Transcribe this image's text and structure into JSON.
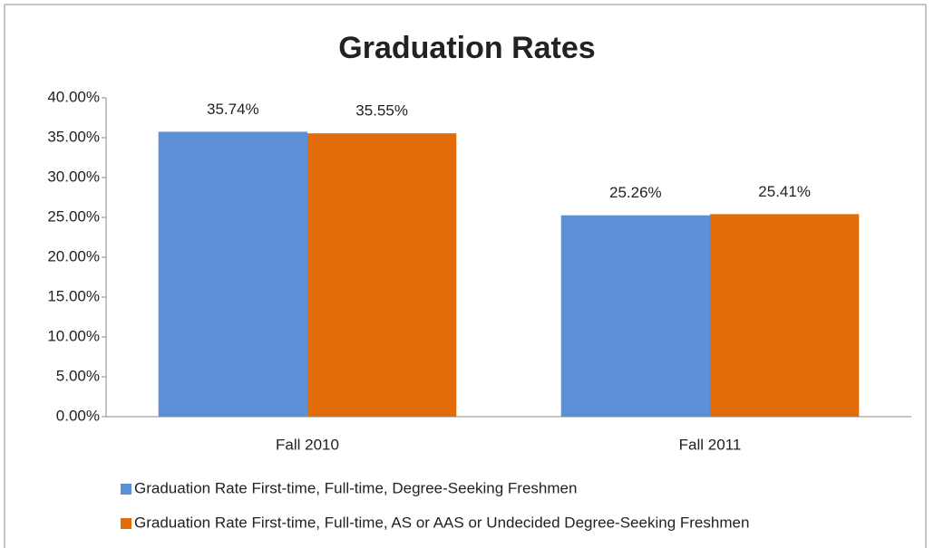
{
  "chart_data": {
    "type": "bar",
    "title": "Graduation Rates",
    "categories": [
      "Fall 2010",
      "Fall 2011"
    ],
    "series": [
      {
        "name": "Graduation Rate First-time, Full-time, Degree-Seeking Freshmen",
        "color": "#5b90d6",
        "values": [
          35.74,
          25.26
        ],
        "value_labels": [
          "35.74%",
          "25.26%"
        ]
      },
      {
        "name": "Graduation Rate First-time, Full-time, AS or AAS or Undecided Degree-Seeking Freshmen",
        "color": "#e36c0a",
        "values": [
          35.55,
          25.41
        ],
        "value_labels": [
          "35.55%",
          "25.41%"
        ]
      }
    ],
    "ylim": [
      0,
      40
    ],
    "yticks": [
      {
        "value": 0,
        "label": "0.00%"
      },
      {
        "value": 5,
        "label": "5.00%"
      },
      {
        "value": 10,
        "label": "10.00%"
      },
      {
        "value": 15,
        "label": "15.00%"
      },
      {
        "value": 20,
        "label": "20.00%"
      },
      {
        "value": 25,
        "label": "25.00%"
      },
      {
        "value": 30,
        "label": "30.00%"
      },
      {
        "value": 35,
        "label": "35.00%"
      },
      {
        "value": 40,
        "label": "40.00%"
      }
    ],
    "legend": "bottom"
  }
}
